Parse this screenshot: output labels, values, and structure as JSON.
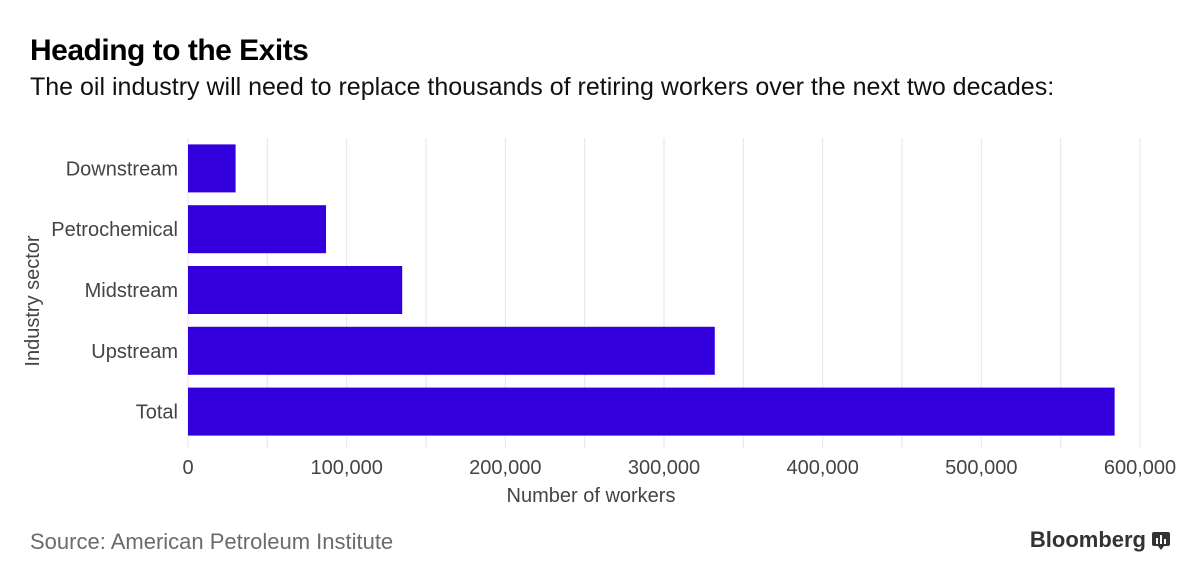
{
  "header": {
    "title": "Heading to the Exits",
    "subtitle": "The oil industry will need to replace thousands of retiring workers over the next two decades:"
  },
  "footer": {
    "source": "Source: American Petroleum Institute",
    "brand": "Bloomberg",
    "brand_icon": "bloomberg-terminal-icon"
  },
  "colors": {
    "bar": "#3300dd",
    "grid": "#e6e6e6",
    "axis_text": "#444444"
  },
  "chart_data": {
    "type": "bar",
    "orientation": "horizontal",
    "categories": [
      "Downstream",
      "Petrochemical",
      "Midstream",
      "Upstream",
      "Total"
    ],
    "values": [
      30000,
      87000,
      135000,
      332000,
      584000
    ],
    "xlabel": "Number of workers",
    "ylabel": "Industry sector",
    "xlim": [
      0,
      600000
    ],
    "xticks": [
      0,
      100000,
      200000,
      300000,
      400000,
      500000,
      600000
    ],
    "xtick_labels": [
      "0",
      "100,000",
      "200,000",
      "300,000",
      "400,000",
      "500,000",
      "600,000"
    ],
    "grid": true
  }
}
